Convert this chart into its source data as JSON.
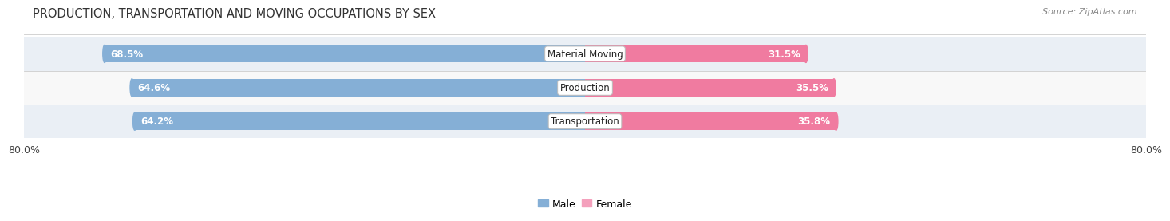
{
  "title": "PRODUCTION, TRANSPORTATION AND MOVING OCCUPATIONS BY SEX",
  "source_text": "Source: ZipAtlas.com",
  "categories": [
    "Material Moving",
    "Production",
    "Transportation"
  ],
  "male_values": [
    68.5,
    64.6,
    64.2
  ],
  "female_values": [
    31.5,
    35.5,
    35.8
  ],
  "male_color": "#85afd6",
  "female_color": "#f07ba0",
  "row_bg_color_odd": "#eaeff5",
  "row_bg_color_even": "#f8f8f8",
  "axis_max": 80.0,
  "legend_male_color": "#85afd6",
  "legend_female_color": "#f4a0bc",
  "title_fontsize": 10.5,
  "source_fontsize": 8,
  "label_fontsize": 8.5,
  "tick_fontsize": 9,
  "cat_label_fontsize": 8.5
}
